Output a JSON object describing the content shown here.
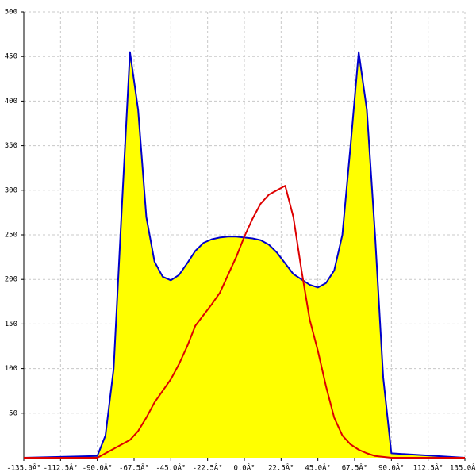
{
  "chart_data": {
    "type": "area",
    "x": [
      -135,
      -90,
      -85,
      -80,
      -75,
      -70,
      -65,
      -60,
      -55,
      -50,
      -45,
      -40,
      -35,
      -30,
      -25,
      -20,
      -15,
      -10,
      -5,
      0,
      5,
      10,
      15,
      20,
      25,
      30,
      35,
      40,
      45,
      50,
      55,
      60,
      65,
      70,
      75,
      80,
      85,
      90,
      135
    ],
    "series": [
      {
        "color": "#0000cc",
        "fill": "#ffff00",
        "values": [
          0,
          2,
          25,
          100,
          280,
          455,
          390,
          270,
          220,
          203,
          199,
          205,
          218,
          232,
          241,
          245,
          247,
          248,
          248,
          247,
          246,
          244,
          239,
          230,
          218,
          206,
          200,
          194,
          191,
          196,
          210,
          250,
          350,
          455,
          390,
          250,
          90,
          5,
          0
        ]
      },
      {
        "color": "#dd0000",
        "values": [
          0,
          0,
          5,
          10,
          15,
          20,
          30,
          45,
          62,
          75,
          88,
          105,
          125,
          148,
          160,
          172,
          185,
          205,
          225,
          248,
          268,
          285,
          295,
          300,
          305,
          270,
          210,
          155,
          120,
          80,
          45,
          25,
          15,
          9,
          5,
          2,
          1,
          0,
          0
        ]
      }
    ],
    "xlim": [
      -135,
      135
    ],
    "ylim": [
      0,
      500
    ],
    "xticks": [
      {
        "value": -135,
        "label": "-135.0Â°"
      },
      {
        "value": -112.5,
        "label": "-112.5Â°"
      },
      {
        "value": -90,
        "label": "-90.0Â°"
      },
      {
        "value": -67.5,
        "label": "-67.5Â°"
      },
      {
        "value": -45,
        "label": "-45.0Â°"
      },
      {
        "value": -22.5,
        "label": "-22.5Â°"
      },
      {
        "value": 0,
        "label": "0.0Â°"
      },
      {
        "value": 22.5,
        "label": "22.5Â°"
      },
      {
        "value": 45,
        "label": "45.0Â°"
      },
      {
        "value": 67.5,
        "label": "67.5Â°"
      },
      {
        "value": 90,
        "label": "90.0Â°"
      },
      {
        "value": 112.5,
        "label": "112.5Â°"
      },
      {
        "value": 135,
        "label": "135.0Â°"
      }
    ],
    "yticks": [
      50,
      100,
      150,
      200,
      250,
      300,
      350,
      400,
      450,
      500
    ],
    "grid": true
  }
}
